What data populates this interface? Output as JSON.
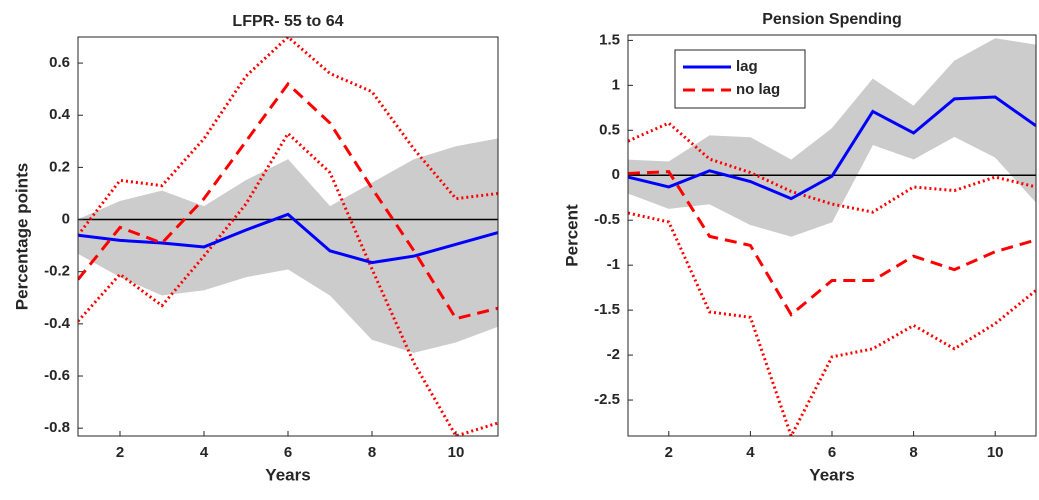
{
  "chart_data": [
    {
      "type": "line",
      "title": "LFPR- 55 to 64",
      "xlabel": "Years",
      "ylabel": "Percentage points",
      "x": [
        1,
        2,
        3,
        4,
        5,
        6,
        7,
        8,
        9,
        10,
        11
      ],
      "xlim": [
        1,
        11
      ],
      "xticks": [
        2,
        4,
        6,
        8,
        10
      ],
      "ylim": [
        -0.83,
        0.7
      ],
      "yticks": [
        -0.8,
        -0.6,
        -0.4,
        -0.2,
        0,
        0.2,
        0.4,
        0.6
      ],
      "zero_line": true,
      "series": [
        {
          "color": "#0000ff",
          "line": "solid",
          "values": [
            -0.06,
            -0.08,
            -0.09,
            -0.105,
            -0.04,
            0.02,
            -0.12,
            -0.165,
            -0.14,
            -0.095,
            -0.05
          ],
          "bounds_style": "shade",
          "bounds_color": "#cccccc",
          "bounds": {
            "upper": [
              0.0,
              0.07,
              0.11,
              0.05,
              0.15,
              0.23,
              0.05,
              0.14,
              0.23,
              0.28,
              0.31
            ],
            "lower": [
              -0.13,
              -0.22,
              -0.29,
              -0.27,
              -0.22,
              -0.19,
              -0.29,
              -0.46,
              -0.51,
              -0.47,
              -0.41
            ]
          }
        },
        {
          "color": "#ff0000",
          "line": "dashed",
          "values": [
            -0.23,
            -0.03,
            -0.09,
            0.08,
            0.3,
            0.52,
            0.37,
            0.12,
            -0.12,
            -0.38,
            -0.34
          ],
          "bounds_style": "dotted",
          "bounds_color": "#ff0000",
          "bounds": {
            "upper": [
              -0.06,
              0.15,
              0.13,
              0.31,
              0.55,
              0.7,
              0.56,
              0.49,
              0.27,
              0.08,
              0.1
            ],
            "lower": [
              -0.39,
              -0.21,
              -0.33,
              -0.14,
              0.06,
              0.33,
              0.18,
              -0.19,
              -0.55,
              -0.83,
              -0.78
            ]
          }
        }
      ]
    },
    {
      "type": "line",
      "title": "Pension Spending",
      "xlabel": "Years",
      "ylabel": "Percent",
      "x": [
        1,
        2,
        3,
        4,
        5,
        6,
        7,
        8,
        9,
        10,
        11
      ],
      "xlim": [
        1,
        11
      ],
      "xticks": [
        2,
        4,
        6,
        8,
        10
      ],
      "ylim": [
        -2.9,
        1.56
      ],
      "yticks": [
        -2.5,
        -2,
        -1.5,
        -1,
        -0.5,
        0,
        0.5,
        1,
        1.5
      ],
      "zero_line": true,
      "legend": "upper left",
      "series": [
        {
          "name": "lag",
          "color": "#0000ff",
          "line": "solid",
          "values": [
            -0.02,
            -0.13,
            0.05,
            -0.07,
            -0.26,
            -0.01,
            0.71,
            0.47,
            0.85,
            0.87,
            0.55
          ],
          "bounds_style": "shade",
          "bounds_color": "#cccccc",
          "bounds": {
            "upper": [
              0.17,
              0.15,
              0.44,
              0.42,
              0.17,
              0.52,
              1.07,
              0.77,
              1.27,
              1.52,
              1.45
            ],
            "lower": [
              -0.2,
              -0.37,
              -0.32,
              -0.55,
              -0.68,
              -0.52,
              0.34,
              0.18,
              0.43,
              0.2,
              -0.3
            ]
          }
        },
        {
          "name": "no lag",
          "color": "#ff0000",
          "line": "dashed",
          "values": [
            0.02,
            0.04,
            -0.68,
            -0.78,
            -1.55,
            -1.17,
            -1.17,
            -0.9,
            -1.05,
            -0.85,
            -0.72
          ],
          "bounds_style": "dotted",
          "bounds_color": "#ff0000",
          "bounds": {
            "upper": [
              0.38,
              0.58,
              0.18,
              0.03,
              -0.18,
              -0.32,
              -0.41,
              -0.13,
              -0.17,
              -0.02,
              -0.13
            ],
            "lower": [
              -0.42,
              -0.52,
              -1.52,
              -1.58,
              -2.9,
              -2.02,
              -1.93,
              -1.67,
              -1.93,
              -1.65,
              -1.28
            ]
          }
        }
      ]
    }
  ]
}
